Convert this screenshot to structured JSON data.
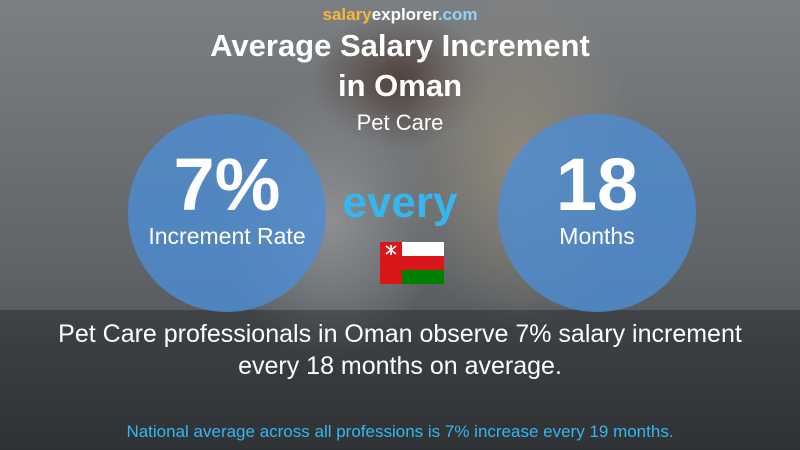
{
  "brand": {
    "part1": "salary",
    "part2": "explorer",
    "part3": ".com"
  },
  "title": {
    "line1": "Average Salary Increment",
    "line2": "in Oman"
  },
  "subtitle": "Pet Care",
  "left_circle": {
    "value": "7%",
    "label": "Increment Rate"
  },
  "connector": "every",
  "right_circle": {
    "value": "18",
    "label": "Months"
  },
  "flag": {
    "country": "Oman",
    "icon": "oman-flag-icon"
  },
  "description": {
    "line1": "Pet Care professionals in Oman observe 7% salary increment",
    "line2": "every 18 months on average."
  },
  "footnote": "National average across all professions is 7% increase every 19 months.",
  "colors": {
    "circle": "#4e8cd2",
    "accent": "#35b6ef",
    "brand_orange": "#f6b73c"
  }
}
